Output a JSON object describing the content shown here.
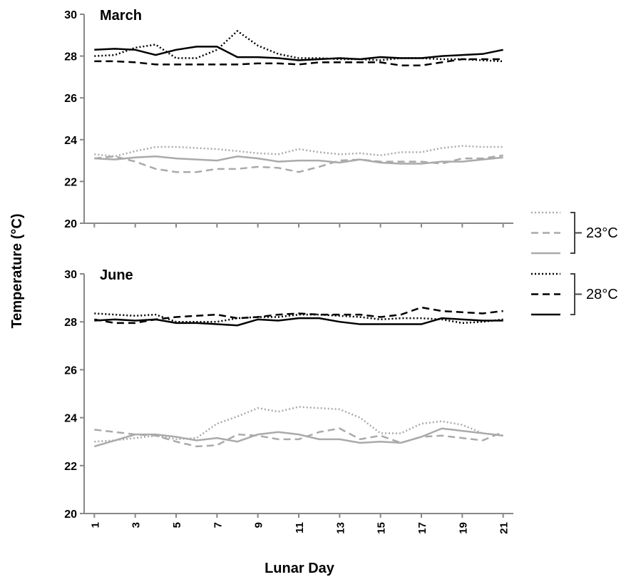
{
  "axis_labels": {
    "y": "Temperature (°C)",
    "x": "Lunar Day"
  },
  "legend": [
    {
      "label": "23°C",
      "color": "#aaaaaa",
      "styles": [
        "dotted",
        "dashed",
        "solid"
      ]
    },
    {
      "label": "28°C",
      "color": "#000000",
      "styles": [
        "dotted",
        "dashed",
        "solid"
      ]
    }
  ],
  "chart_data": [
    {
      "type": "line",
      "title": "March",
      "show_xtick_labels": false,
      "x": [
        1,
        2,
        3,
        4,
        5,
        6,
        7,
        8,
        9,
        10,
        11,
        12,
        13,
        14,
        15,
        16,
        17,
        18,
        19,
        20,
        21
      ],
      "xlim": [
        0.5,
        21.5
      ],
      "xticks": [
        1,
        3,
        5,
        7,
        9,
        11,
        13,
        15,
        17,
        19,
        21
      ],
      "ylim": [
        20,
        30
      ],
      "yticks": [
        20,
        22,
        24,
        26,
        28,
        30
      ],
      "series": [
        {
          "color": "#000000",
          "dash": "solid",
          "values": [
            28.3,
            28.35,
            28.3,
            28.05,
            28.3,
            28.45,
            28.45,
            27.95,
            27.95,
            27.9,
            27.8,
            27.85,
            27.9,
            27.85,
            27.95,
            27.9,
            27.9,
            28.0,
            28.05,
            28.1,
            28.3
          ]
        },
        {
          "color": "#000000",
          "dash": "dotted",
          "values": [
            28.0,
            28.05,
            28.4,
            28.55,
            27.9,
            27.9,
            28.3,
            29.2,
            28.5,
            28.1,
            27.9,
            27.9,
            27.85,
            27.85,
            27.8,
            27.9,
            27.9,
            27.85,
            27.85,
            27.8,
            27.75
          ]
        },
        {
          "color": "#000000",
          "dash": "dashed",
          "values": [
            27.75,
            27.75,
            27.7,
            27.6,
            27.6,
            27.6,
            27.6,
            27.6,
            27.65,
            27.65,
            27.6,
            27.7,
            27.7,
            27.7,
            27.7,
            27.55,
            27.55,
            27.7,
            27.85,
            27.85,
            27.85
          ]
        },
        {
          "color": "#aaaaaa",
          "dash": "dotted",
          "values": [
            23.3,
            23.2,
            23.45,
            23.65,
            23.65,
            23.6,
            23.55,
            23.45,
            23.35,
            23.3,
            23.55,
            23.4,
            23.3,
            23.35,
            23.25,
            23.4,
            23.4,
            23.6,
            23.7,
            23.65,
            23.65
          ]
        },
        {
          "color": "#aaaaaa",
          "dash": "dashed",
          "values": [
            23.1,
            23.2,
            22.95,
            22.6,
            22.45,
            22.45,
            22.6,
            22.6,
            22.7,
            22.65,
            22.45,
            22.7,
            23.0,
            23.05,
            22.95,
            22.95,
            22.95,
            22.85,
            23.1,
            23.1,
            23.25
          ]
        },
        {
          "color": "#aaaaaa",
          "dash": "solid",
          "values": [
            23.1,
            23.05,
            23.15,
            23.2,
            23.1,
            23.05,
            23.0,
            23.2,
            23.1,
            22.95,
            23.0,
            23.0,
            22.9,
            23.05,
            22.9,
            22.85,
            22.85,
            22.95,
            22.95,
            23.05,
            23.15
          ]
        }
      ]
    },
    {
      "type": "line",
      "title": "June",
      "show_xtick_labels": true,
      "x": [
        1,
        2,
        3,
        4,
        5,
        6,
        7,
        8,
        9,
        10,
        11,
        12,
        13,
        14,
        15,
        16,
        17,
        18,
        19,
        20,
        21
      ],
      "xlim": [
        0.5,
        21.5
      ],
      "xticks": [
        1,
        3,
        5,
        7,
        9,
        11,
        13,
        15,
        17,
        19,
        21
      ],
      "ylim": [
        20,
        30
      ],
      "yticks": [
        20,
        22,
        24,
        26,
        28,
        30
      ],
      "series": [
        {
          "color": "#000000",
          "dash": "solid",
          "values": [
            28.05,
            28.1,
            28.05,
            28.1,
            27.95,
            27.95,
            27.9,
            27.85,
            28.1,
            28.05,
            28.15,
            28.15,
            28.0,
            27.9,
            27.9,
            27.9,
            27.9,
            28.15,
            28.1,
            28.05,
            28.05
          ]
        },
        {
          "color": "#000000",
          "dash": "dotted",
          "values": [
            28.35,
            28.3,
            28.25,
            28.3,
            28.0,
            28.0,
            28.0,
            28.15,
            28.2,
            28.2,
            28.3,
            28.3,
            28.25,
            28.2,
            28.1,
            28.15,
            28.15,
            28.1,
            27.95,
            28.0,
            28.1
          ]
        },
        {
          "color": "#000000",
          "dash": "dashed",
          "values": [
            28.1,
            27.95,
            27.95,
            28.1,
            28.2,
            28.25,
            28.3,
            28.15,
            28.2,
            28.3,
            28.35,
            28.3,
            28.3,
            28.3,
            28.2,
            28.3,
            28.6,
            28.45,
            28.4,
            28.35,
            28.45
          ]
        },
        {
          "color": "#aaaaaa",
          "dash": "dotted",
          "values": [
            23.0,
            23.05,
            23.15,
            23.25,
            23.1,
            23.15,
            23.75,
            24.05,
            24.4,
            24.25,
            24.45,
            24.4,
            24.35,
            24.0,
            23.35,
            23.35,
            23.75,
            23.85,
            23.7,
            23.35,
            23.25
          ]
        },
        {
          "color": "#aaaaaa",
          "dash": "dashed",
          "values": [
            23.5,
            23.4,
            23.3,
            23.25,
            23.0,
            22.8,
            22.85,
            23.3,
            23.25,
            23.1,
            23.1,
            23.4,
            23.55,
            23.1,
            23.25,
            22.95,
            23.2,
            23.25,
            23.15,
            23.05,
            23.4
          ]
        },
        {
          "color": "#aaaaaa",
          "dash": "solid",
          "values": [
            22.8,
            23.05,
            23.3,
            23.3,
            23.2,
            23.05,
            23.15,
            23.0,
            23.3,
            23.4,
            23.3,
            23.1,
            23.1,
            22.95,
            23.0,
            22.95,
            23.2,
            23.55,
            23.45,
            23.35,
            23.25
          ]
        }
      ]
    }
  ]
}
